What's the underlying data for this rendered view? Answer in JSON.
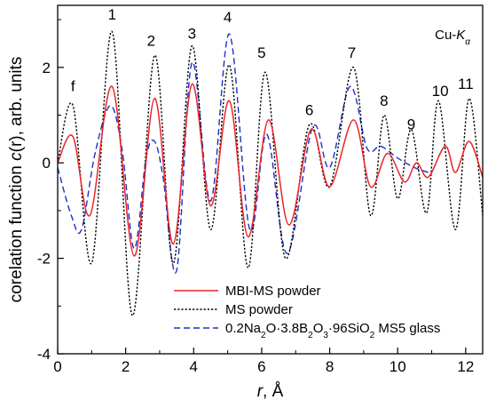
{
  "chart_data": {
    "type": "line",
    "xlabel_var": "r",
    "xlabel_unit": ", Å",
    "ylabel_prefix": "corelation function ",
    "ylabel_var": "c",
    "ylabel_suffix": "(r), arb. units",
    "xlim": [
      0,
      12.5
    ],
    "ylim": [
      -4,
      3.3
    ],
    "xticks": [
      0,
      2,
      4,
      6,
      8,
      10,
      12
    ],
    "yticks": [
      -4,
      -2,
      0,
      2
    ],
    "grid": false,
    "legend_position": "bottom-center",
    "corner_label": {
      "prefix": "Cu-",
      "k": "K",
      "sub": "α"
    },
    "peak_labels": [
      {
        "text": "f",
        "x": 0.45,
        "y": 1.5
      },
      {
        "text": "1",
        "x": 1.6,
        "y": 3.0
      },
      {
        "text": "2",
        "x": 2.75,
        "y": 2.45
      },
      {
        "text": "3",
        "x": 3.95,
        "y": 2.6
      },
      {
        "text": "4",
        "x": 5.0,
        "y": 2.95
      },
      {
        "text": "5",
        "x": 6.0,
        "y": 2.2
      },
      {
        "text": "6",
        "x": 7.4,
        "y": 1.0
      },
      {
        "text": "7",
        "x": 8.65,
        "y": 2.2
      },
      {
        "text": "8",
        "x": 9.6,
        "y": 1.2
      },
      {
        "text": "9",
        "x": 10.4,
        "y": 0.7
      },
      {
        "text": "10",
        "x": 11.25,
        "y": 1.4
      },
      {
        "text": "11",
        "x": 12.0,
        "y": 1.55
      }
    ],
    "series": [
      {
        "name": "MBI-MS powder",
        "color": "#e8262a",
        "dash": "solid",
        "points": [
          [
            0,
            0
          ],
          [
            0.45,
            0.55
          ],
          [
            0.95,
            -1.1
          ],
          [
            1.6,
            1.6
          ],
          [
            2.25,
            -1.95
          ],
          [
            2.85,
            1.35
          ],
          [
            3.4,
            -1.7
          ],
          [
            3.95,
            1.65
          ],
          [
            4.5,
            -0.9
          ],
          [
            5.05,
            1.3
          ],
          [
            5.6,
            -1.55
          ],
          [
            6.2,
            0.9
          ],
          [
            6.8,
            -1.3
          ],
          [
            7.45,
            0.7
          ],
          [
            8.0,
            -0.5
          ],
          [
            8.7,
            0.9
          ],
          [
            9.2,
            -0.5
          ],
          [
            9.7,
            0.2
          ],
          [
            10.2,
            -0.4
          ],
          [
            10.55,
            0.0
          ],
          [
            10.9,
            -0.3
          ],
          [
            11.4,
            0.35
          ],
          [
            11.7,
            -0.2
          ],
          [
            12.1,
            0.45
          ],
          [
            12.5,
            -0.3
          ]
        ]
      },
      {
        "name": "MS powder",
        "color": "#000000",
        "dash": "dot",
        "points": [
          [
            0,
            0
          ],
          [
            0.45,
            1.2
          ],
          [
            1.0,
            -2.1
          ],
          [
            1.6,
            2.75
          ],
          [
            2.2,
            -3.2
          ],
          [
            2.85,
            2.25
          ],
          [
            3.4,
            -2.1
          ],
          [
            3.95,
            2.45
          ],
          [
            4.5,
            -1.4
          ],
          [
            5.05,
            2.05
          ],
          [
            5.6,
            -2.2
          ],
          [
            6.1,
            1.9
          ],
          [
            6.7,
            -2.0
          ],
          [
            7.4,
            0.8
          ],
          [
            8.0,
            -0.5
          ],
          [
            8.7,
            2.0
          ],
          [
            9.2,
            -1.1
          ],
          [
            9.6,
            1.0
          ],
          [
            10.0,
            -0.75
          ],
          [
            10.4,
            0.7
          ],
          [
            10.85,
            -1.05
          ],
          [
            11.2,
            1.3
          ],
          [
            11.7,
            -1.4
          ],
          [
            12.1,
            1.35
          ],
          [
            12.5,
            -1.1
          ]
        ]
      },
      {
        "name": "0.2Na2O·3.8B2O3·96SiO2 MS5 glass",
        "color": "#1f2ec8",
        "dash": "dash",
        "points": [
          [
            0,
            -0.1
          ],
          [
            0.4,
            -1.1
          ],
          [
            0.7,
            -1.4
          ],
          [
            1.1,
            0.2
          ],
          [
            1.55,
            1.2
          ],
          [
            1.9,
            0.25
          ],
          [
            2.25,
            -1.8
          ],
          [
            2.6,
            0.1
          ],
          [
            2.85,
            0.45
          ],
          [
            3.1,
            -0.3
          ],
          [
            3.5,
            -2.25
          ],
          [
            3.95,
            2.1
          ],
          [
            4.5,
            -0.8
          ],
          [
            5.05,
            2.7
          ],
          [
            5.65,
            -1.4
          ],
          [
            6.15,
            0.6
          ],
          [
            6.75,
            -1.9
          ],
          [
            7.5,
            0.75
          ],
          [
            8.0,
            -0.1
          ],
          [
            8.6,
            1.6
          ],
          [
            9.1,
            0.3
          ],
          [
            9.5,
            0.35
          ],
          [
            10.0,
            0.1
          ],
          [
            10.5,
            -0.1
          ],
          [
            10.9,
            -0.2
          ]
        ]
      }
    ],
    "legend": [
      {
        "plain": "MBI-MS powder"
      },
      {
        "plain": "MS powder"
      },
      {
        "rich": [
          {
            "t": "0.2Na"
          },
          {
            "t": "2",
            "sub": true
          },
          {
            "t": "O·3.8B"
          },
          {
            "t": "2",
            "sub": true
          },
          {
            "t": "O"
          },
          {
            "t": "3",
            "sub": true
          },
          {
            "t": "·96SiO"
          },
          {
            "t": "2",
            "sub": true
          },
          {
            "t": " MS5 glass"
          }
        ]
      }
    ]
  }
}
